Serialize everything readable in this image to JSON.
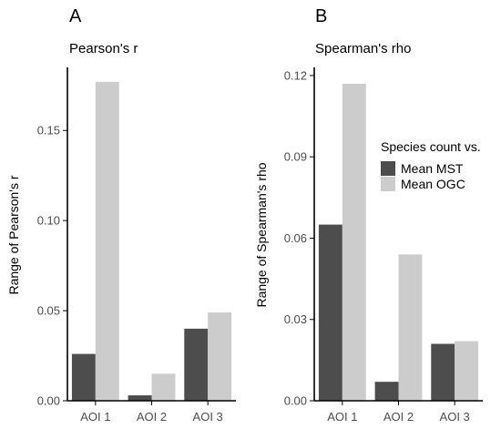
{
  "colors": {
    "MST": "#4d4d4d",
    "OGC": "#cccccc",
    "axis": "#000000",
    "tick_text": "#4d4d4d"
  },
  "legend": {
    "title": "Species count vs.",
    "items": [
      {
        "label": "Mean MST",
        "color": "#4d4d4d"
      },
      {
        "label": "Mean OGC",
        "color": "#cccccc"
      }
    ]
  },
  "chart_data": [
    {
      "type": "bar",
      "panel": "A",
      "title": "Pearson's r",
      "ylabel": "Range of Pearson's r",
      "xlabel": "",
      "categories": [
        "AOI 1",
        "AOI 2",
        "AOI 3"
      ],
      "series": [
        {
          "name": "Mean MST",
          "values": [
            0.026,
            0.003,
            0.04
          ]
        },
        {
          "name": "Mean OGC",
          "values": [
            0.177,
            0.015,
            0.049
          ]
        }
      ],
      "ylim": [
        0,
        0.185
      ],
      "yticks": [
        0.0,
        0.05,
        0.1,
        0.15
      ],
      "ytick_labels": [
        "0.00",
        "0.05",
        "0.10",
        "0.15"
      ],
      "grid": false
    },
    {
      "type": "bar",
      "panel": "B",
      "title": "Spearman's rho",
      "ylabel": "Range of Spearman's rho",
      "xlabel": "",
      "categories": [
        "AOI 1",
        "AOI 2",
        "AOI 3"
      ],
      "series": [
        {
          "name": "Mean MST",
          "values": [
            0.065,
            0.007,
            0.021
          ]
        },
        {
          "name": "Mean OGC",
          "values": [
            0.117,
            0.054,
            0.022
          ]
        }
      ],
      "ylim": [
        0,
        0.123
      ],
      "yticks": [
        0.0,
        0.03,
        0.06,
        0.09,
        0.12
      ],
      "ytick_labels": [
        "0.00",
        "0.03",
        "0.06",
        "0.09",
        "0.12"
      ],
      "grid": false,
      "legend_position": "right"
    }
  ]
}
